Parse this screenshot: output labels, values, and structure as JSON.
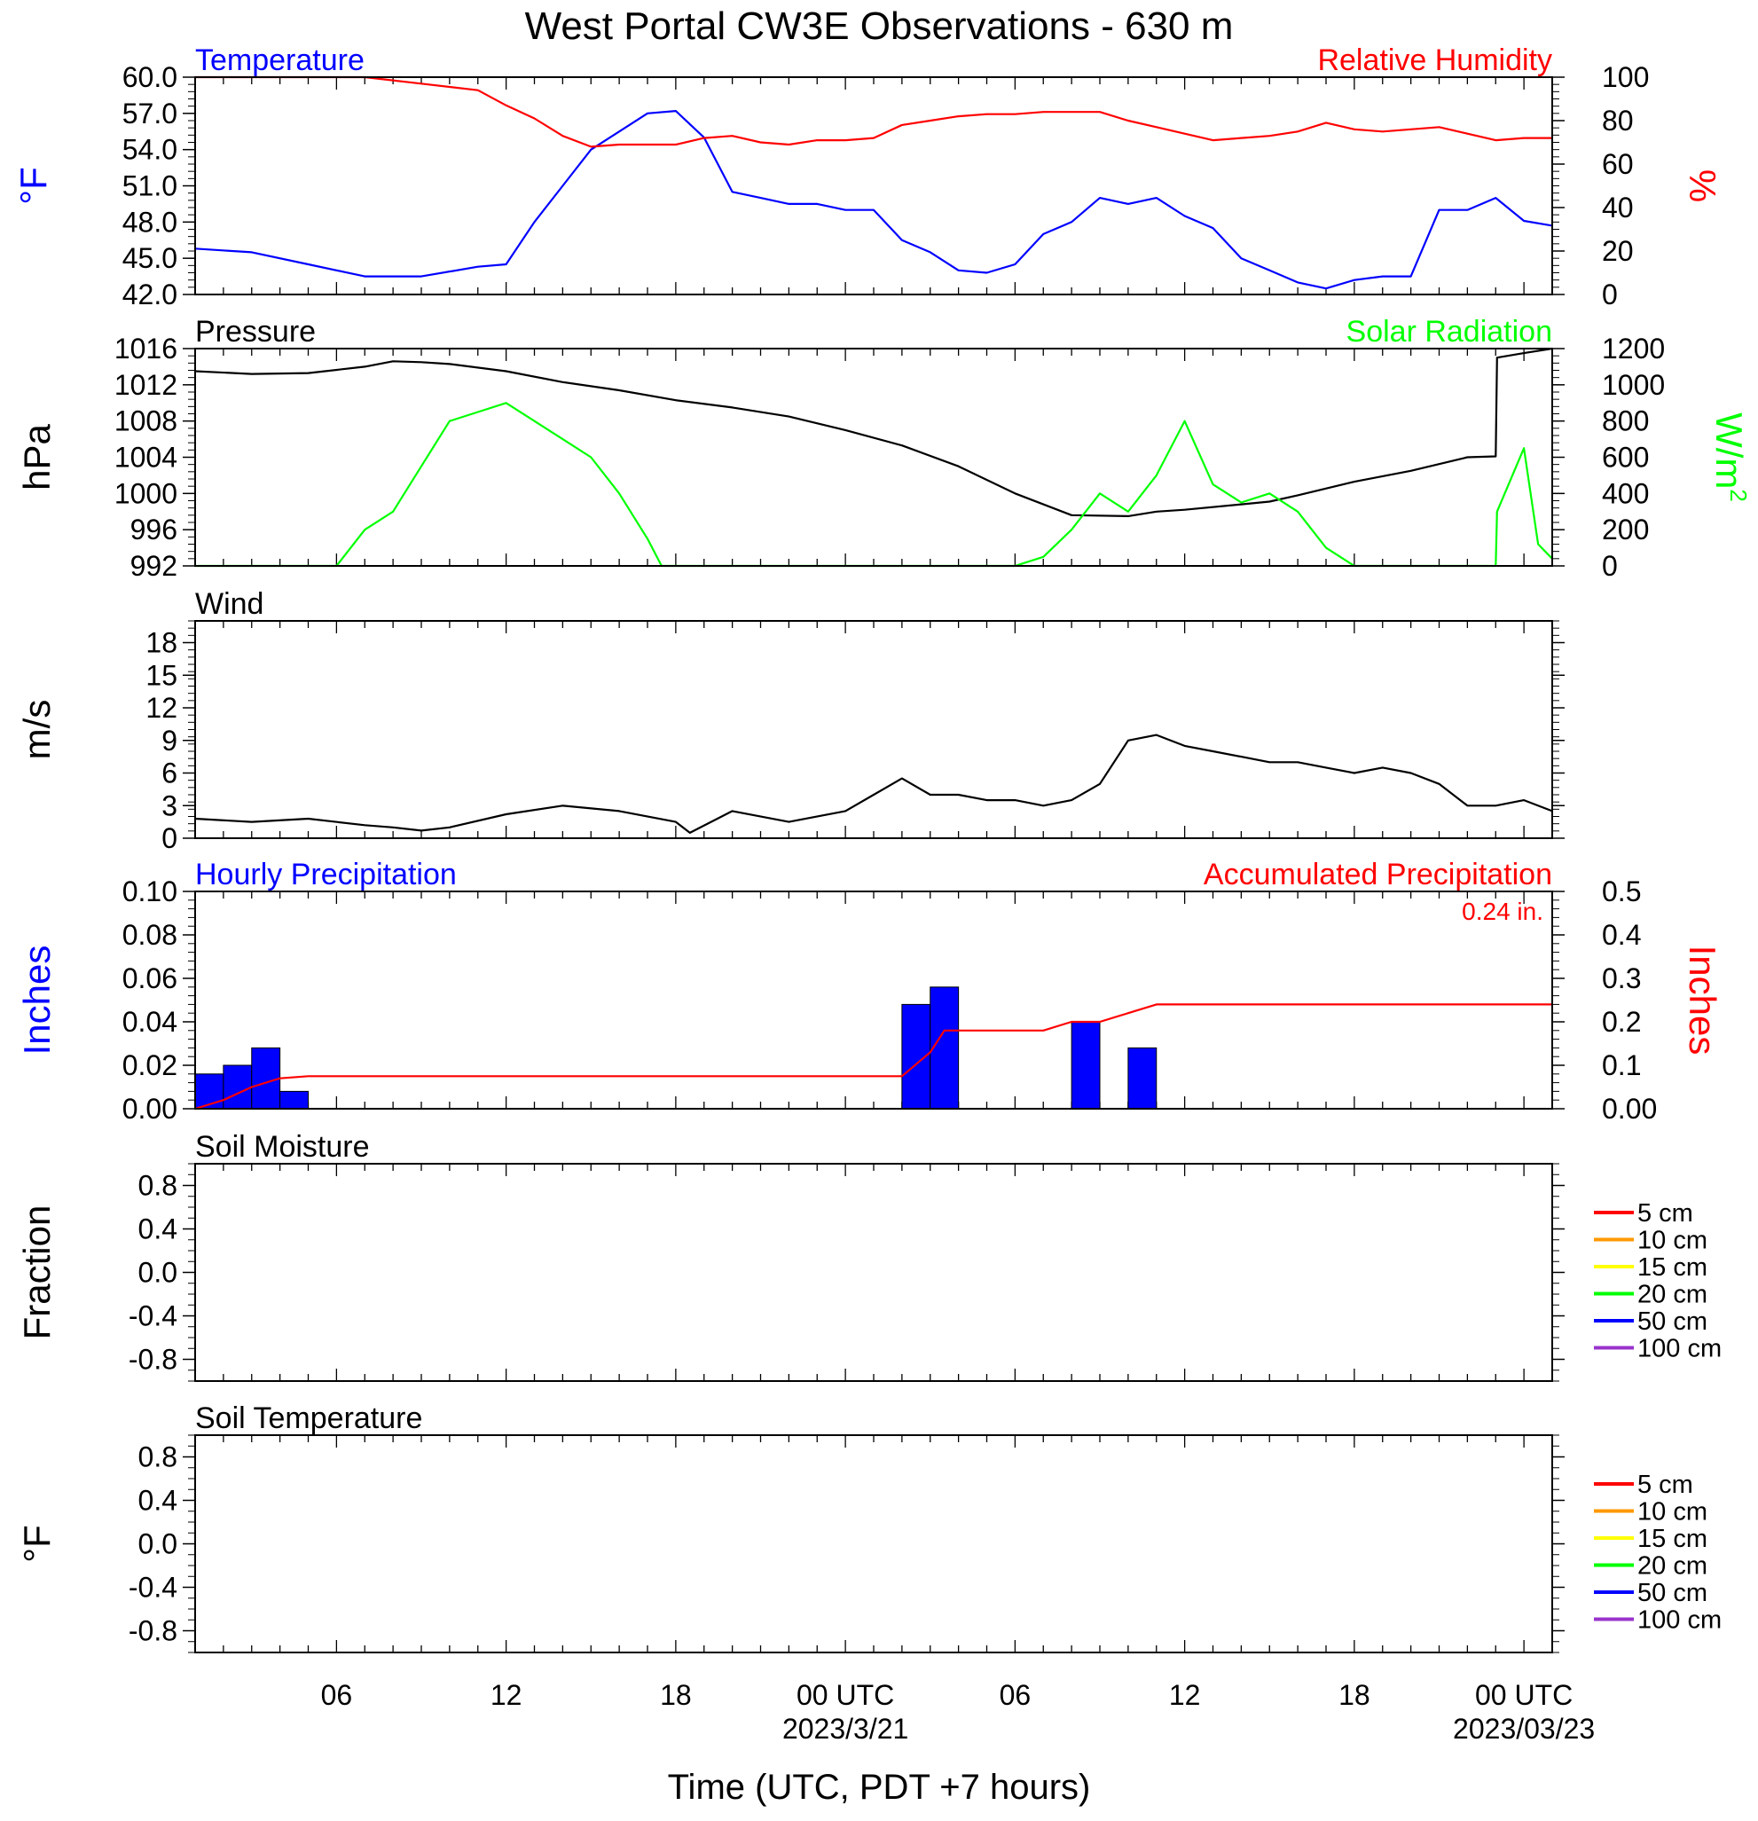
{
  "title": "West Portal CW3E Observations - 630 m",
  "xlabel": "Time (UTC, PDT +7 hours)",
  "colors": {
    "blue": "#0000ff",
    "red": "#ff0000",
    "green": "#00ff00",
    "black": "#000000"
  },
  "x_ticks": [
    {
      "h": 6,
      "label": "06",
      "sub": ""
    },
    {
      "h": 12,
      "label": "12",
      "sub": ""
    },
    {
      "h": 18,
      "label": "18",
      "sub": ""
    },
    {
      "h": 24,
      "label": "00 UTC",
      "sub": "2023/3/21"
    },
    {
      "h": 30,
      "label": "06",
      "sub": ""
    },
    {
      "h": 36,
      "label": "12",
      "sub": ""
    },
    {
      "h": 42,
      "label": "18",
      "sub": ""
    },
    {
      "h": 48,
      "label": "00 UTC",
      "sub": "2023/03/23"
    }
  ],
  "chart_data": [
    {
      "type": "line",
      "panel": "temperature_humidity",
      "left_title": "Temperature",
      "right_title": "Relative Humidity",
      "left_label": "°F",
      "right_label": "%",
      "ylim_left": [
        42,
        60
      ],
      "yticks_left": [
        "42.0",
        "45.0",
        "48.0",
        "51.0",
        "54.0",
        "57.0",
        "60.0"
      ],
      "ylim_right": [
        0,
        100
      ],
      "yticks_right": [
        "0",
        "20",
        "40",
        "60",
        "80",
        "100"
      ],
      "x_hours": [
        1,
        3,
        5,
        7,
        9,
        11,
        12,
        13,
        14,
        15,
        16,
        17,
        18,
        19,
        20,
        21,
        22,
        23,
        24,
        25,
        26,
        27,
        28,
        29,
        30,
        31,
        32,
        33,
        34,
        35,
        36,
        37,
        38,
        39,
        40,
        41,
        42,
        43,
        44,
        45,
        46,
        47,
        48,
        49
      ],
      "series": [
        {
          "name": "Temperature",
          "axis": "left",
          "color": "#0000ff",
          "values": [
            45.8,
            45.5,
            44.5,
            43.5,
            43.5,
            44.3,
            44.5,
            48,
            51,
            54,
            55.5,
            57,
            57.2,
            55,
            50.5,
            50,
            49.5,
            49.5,
            49,
            49,
            46.5,
            45.5,
            44,
            43.8,
            44.5,
            47,
            48,
            50,
            49.5,
            50,
            48.5,
            47.5,
            45,
            44,
            43,
            42.5,
            43.2,
            43.5,
            43.5,
            49,
            49,
            50,
            48.1,
            47.7
          ]
        },
        {
          "name": "Relative Humidity",
          "axis": "right",
          "color": "#ff0000",
          "values": [
            100,
            100,
            100,
            100,
            97,
            94,
            87,
            81,
            73,
            68,
            69,
            69,
            69,
            72,
            73,
            70,
            69,
            71,
            71,
            72,
            78,
            80,
            82,
            83,
            83,
            84,
            84,
            84,
            80,
            77,
            74,
            71,
            72,
            73,
            75,
            79,
            76,
            75,
            76,
            77,
            74,
            71,
            72,
            72
          ]
        }
      ]
    },
    {
      "type": "line",
      "panel": "pressure_solar",
      "left_title": "Pressure",
      "right_title": "Solar Radiation",
      "left_label": "hPa",
      "right_label": "W/m",
      "right_label_sup": "2",
      "ylim_left": [
        992,
        1016
      ],
      "yticks_left": [
        "992",
        "996",
        "1000",
        "1004",
        "1008",
        "1012",
        "1016"
      ],
      "ylim_right": [
        0,
        1200
      ],
      "yticks_right": [
        "0",
        "200",
        "400",
        "600",
        "800",
        "1000",
        "1200"
      ],
      "series": [
        {
          "name": "Pressure",
          "axis": "left",
          "color": "#000000",
          "x_hours": [
            1,
            3,
            5,
            7,
            8,
            9,
            10,
            12,
            14,
            16,
            18,
            20,
            22,
            24,
            26,
            28,
            30,
            32,
            34,
            35,
            36,
            38,
            39,
            40,
            42,
            44,
            46,
            47,
            47.05,
            48,
            49
          ],
          "values": [
            1013.5,
            1013.2,
            1013.3,
            1014,
            1014.6,
            1014.5,
            1014.3,
            1013.5,
            1012.3,
            1011.4,
            1010.3,
            1009.5,
            1008.5,
            1007,
            1005.3,
            1003,
            1000,
            997.6,
            997.5,
            998,
            998.2,
            998.8,
            999.1,
            999.8,
            1001.3,
            1002.5,
            1004,
            1004.1,
            1015,
            1015.5,
            1016
          ]
        },
        {
          "name": "Solar Radiation",
          "axis": "right",
          "color": "#00ff00",
          "x_hours": [
            1,
            5,
            6,
            7,
            8,
            9,
            10,
            11,
            12,
            13,
            14,
            15,
            16,
            17,
            17.5,
            18,
            20,
            24,
            28,
            30,
            31,
            32,
            33,
            34,
            35,
            36,
            37,
            38,
            39,
            40,
            41,
            42,
            43,
            44,
            45,
            46,
            47,
            47.05,
            48,
            48.5,
            49
          ],
          "values": [
            0,
            0,
            0,
            200,
            300,
            550,
            800,
            850,
            900,
            800,
            700,
            600,
            400,
            150,
            0,
            0,
            0,
            0,
            0,
            0,
            50,
            200,
            400,
            300,
            500,
            800,
            450,
            350,
            400,
            300,
            100,
            0,
            0,
            0,
            0,
            0,
            0,
            300,
            650,
            120,
            40
          ]
        }
      ]
    },
    {
      "type": "line",
      "panel": "wind",
      "left_title": "Wind",
      "left_label": "m/s",
      "ylim_left": [
        0,
        20
      ],
      "yticks_left": [
        "0",
        "3",
        "6",
        "9",
        "12",
        "15",
        "18"
      ],
      "series": [
        {
          "name": "Wind",
          "axis": "left",
          "color": "#000000",
          "x_hours": [
            1,
            3,
            5,
            7,
            8,
            9,
            10,
            12,
            14,
            16,
            18,
            18.5,
            20,
            22,
            24,
            25,
            26,
            27,
            28,
            29,
            30,
            31,
            32,
            33,
            34,
            35,
            36,
            37,
            38,
            39,
            40,
            41,
            42,
            43,
            44,
            45,
            46,
            47,
            48,
            49
          ],
          "values": [
            1.8,
            1.5,
            1.8,
            1.2,
            1.0,
            0.7,
            1.0,
            2.2,
            3,
            2.5,
            1.5,
            0.5,
            2.5,
            1.5,
            2.5,
            4,
            5.5,
            4,
            4,
            3.5,
            3.5,
            3,
            3.5,
            5,
            9,
            9.5,
            8.5,
            8,
            7.5,
            7,
            7,
            6.5,
            6,
            6.5,
            6,
            5,
            3,
            3,
            3.5,
            2.5
          ]
        }
      ]
    },
    {
      "type": "bar",
      "panel": "precipitation",
      "left_title": "Hourly Precipitation",
      "right_title": "Accumulated Precipitation",
      "annotation": "0.24 in.",
      "left_label": "Inches",
      "right_label": "Inches",
      "ylim_left": [
        0,
        0.1
      ],
      "yticks_left": [
        "0.00",
        "0.02",
        "0.04",
        "0.06",
        "0.08",
        "0.10"
      ],
      "ylim_right": [
        0,
        0.5
      ],
      "yticks_right": [
        "0.00",
        "0.1",
        "0.2",
        "0.3",
        "0.4",
        "0.5"
      ],
      "bars": [
        {
          "start_hour": 1,
          "value": 0.016
        },
        {
          "start_hour": 2,
          "value": 0.02
        },
        {
          "start_hour": 3,
          "value": 0.028
        },
        {
          "start_hour": 4,
          "value": 0.008
        },
        {
          "start_hour": 26,
          "value": 0.048
        },
        {
          "start_hour": 27,
          "value": 0.056
        },
        {
          "start_hour": 32,
          "value": 0.04
        },
        {
          "start_hour": 34,
          "value": 0.028
        }
      ],
      "series": [
        {
          "name": "Accumulated Precipitation",
          "axis": "right",
          "color": "#ff0000",
          "x_hours": [
            1,
            2,
            3,
            4,
            5,
            26,
            27,
            27.5,
            28,
            29,
            31,
            32,
            33,
            34,
            35,
            36,
            49
          ],
          "values": [
            0,
            0.02,
            0.05,
            0.07,
            0.075,
            0.075,
            0.13,
            0.18,
            0.18,
            0.18,
            0.18,
            0.2,
            0.2,
            0.22,
            0.24,
            0.24,
            0.24
          ]
        }
      ]
    },
    {
      "type": "line",
      "panel": "soil_moisture",
      "left_title": "Soil Moisture",
      "left_label": "Fraction",
      "ylim_left": [
        -1,
        1
      ],
      "yticks_left": [
        "-0.8",
        "-0.4",
        "0.0",
        "0.4",
        "0.8"
      ],
      "legend": [
        {
          "name": "5 cm",
          "color": "#ff0000"
        },
        {
          "name": "10 cm",
          "color": "#ff9900"
        },
        {
          "name": "15 cm",
          "color": "#ffff00"
        },
        {
          "name": "20 cm",
          "color": "#00ff00"
        },
        {
          "name": "50 cm",
          "color": "#0000ff"
        },
        {
          "name": "100 cm",
          "color": "#9933cc"
        }
      ],
      "series": []
    },
    {
      "type": "line",
      "panel": "soil_temperature",
      "left_title": "Soil Temperature",
      "left_label": "°F",
      "ylim_left": [
        -1,
        1
      ],
      "yticks_left": [
        "-0.8",
        "-0.4",
        "0.0",
        "0.4",
        "0.8"
      ],
      "legend": [
        {
          "name": "5 cm",
          "color": "#ff0000"
        },
        {
          "name": "10 cm",
          "color": "#ff9900"
        },
        {
          "name": "15 cm",
          "color": "#ffff00"
        },
        {
          "name": "20 cm",
          "color": "#00ff00"
        },
        {
          "name": "50 cm",
          "color": "#0000ff"
        },
        {
          "name": "100 cm",
          "color": "#9933cc"
        }
      ],
      "series": []
    }
  ]
}
